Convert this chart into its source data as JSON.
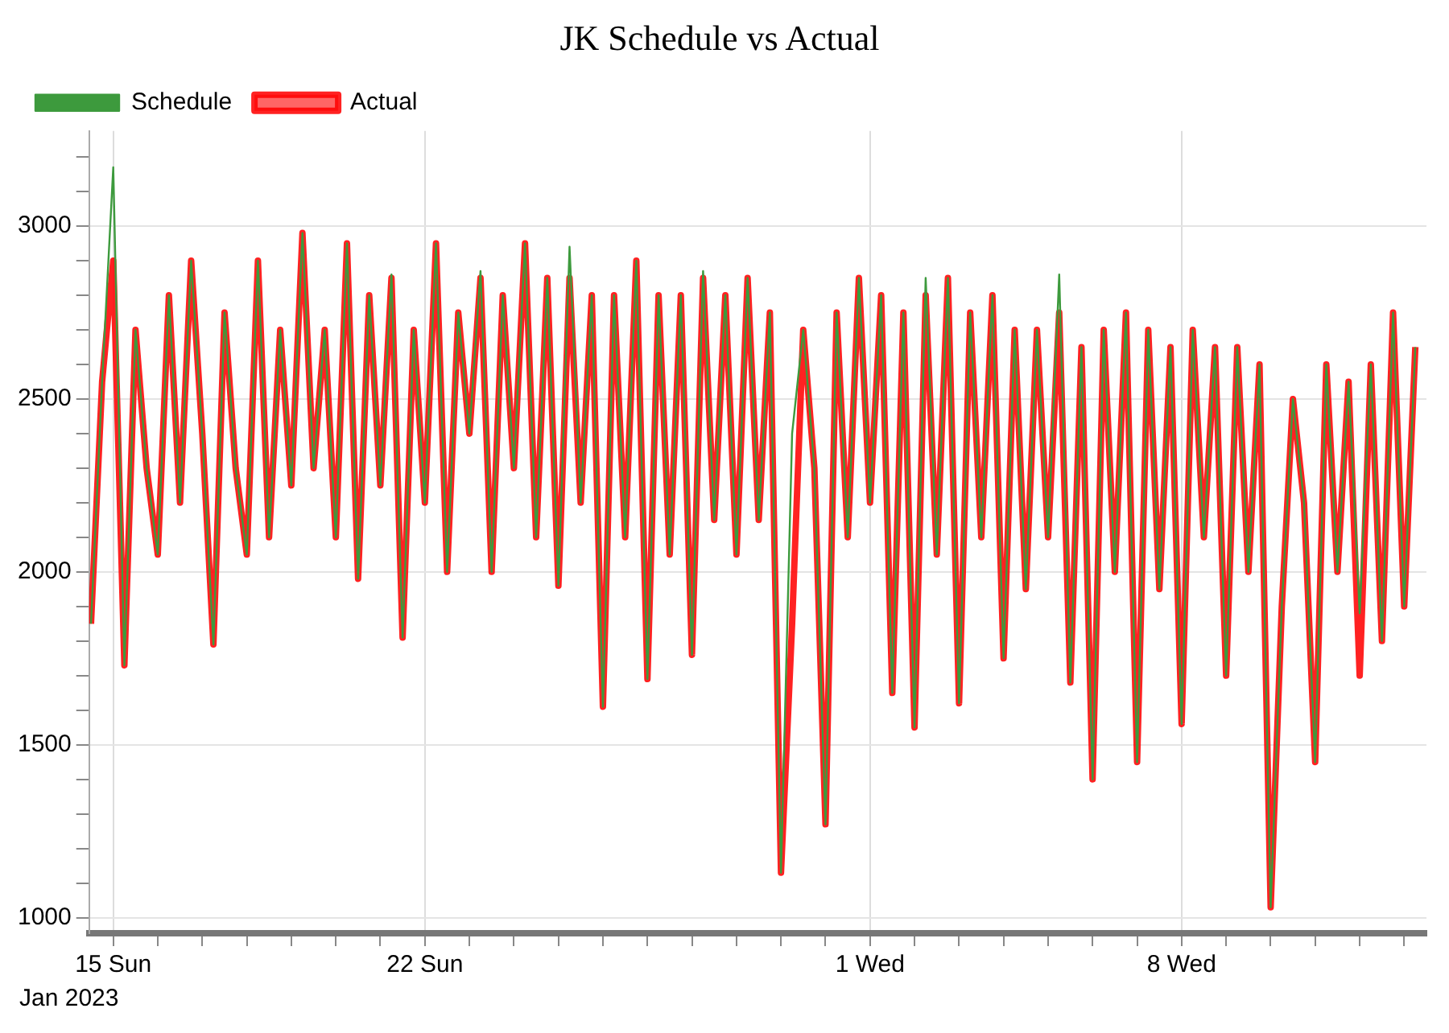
{
  "chart_data": {
    "type": "line",
    "title": "JK Schedule vs Actual",
    "x": [
      "2023-01-14T12:00",
      "2023-01-14T18:00",
      "2023-01-15T00:00",
      "2023-01-15T06:00",
      "2023-01-15T12:00",
      "2023-01-15T18:00",
      "2023-01-16T00:00",
      "2023-01-16T06:00",
      "2023-01-16T12:00",
      "2023-01-16T18:00",
      "2023-01-17T00:00",
      "2023-01-17T06:00",
      "2023-01-17T12:00",
      "2023-01-17T18:00",
      "2023-01-18T00:00",
      "2023-01-18T06:00",
      "2023-01-18T12:00",
      "2023-01-18T18:00",
      "2023-01-19T00:00",
      "2023-01-19T06:00",
      "2023-01-19T12:00",
      "2023-01-19T18:00",
      "2023-01-20T00:00",
      "2023-01-20T06:00",
      "2023-01-20T12:00",
      "2023-01-20T18:00",
      "2023-01-21T00:00",
      "2023-01-21T06:00",
      "2023-01-21T12:00",
      "2023-01-21T18:00",
      "2023-01-22T00:00",
      "2023-01-22T06:00",
      "2023-01-22T12:00",
      "2023-01-22T18:00",
      "2023-01-23T00:00",
      "2023-01-23T06:00",
      "2023-01-23T12:00",
      "2023-01-23T18:00",
      "2023-01-24T00:00",
      "2023-01-24T06:00",
      "2023-01-24T12:00",
      "2023-01-24T18:00",
      "2023-01-25T00:00",
      "2023-01-25T06:00",
      "2023-01-25T12:00",
      "2023-01-25T18:00",
      "2023-01-26T00:00",
      "2023-01-26T06:00",
      "2023-01-26T12:00",
      "2023-01-26T18:00",
      "2023-01-27T00:00",
      "2023-01-27T06:00",
      "2023-01-27T12:00",
      "2023-01-27T18:00",
      "2023-01-28T00:00",
      "2023-01-28T06:00",
      "2023-01-28T12:00",
      "2023-01-28T18:00",
      "2023-01-29T00:00",
      "2023-01-29T06:00",
      "2023-01-29T12:00",
      "2023-01-29T18:00",
      "2023-01-30T00:00",
      "2023-01-30T06:00",
      "2023-01-30T12:00",
      "2023-01-30T18:00",
      "2023-01-31T00:00",
      "2023-01-31T06:00",
      "2023-01-31T12:00",
      "2023-01-31T18:00",
      "2023-02-01T00:00",
      "2023-02-01T06:00",
      "2023-02-01T12:00",
      "2023-02-01T18:00",
      "2023-02-02T00:00",
      "2023-02-02T06:00",
      "2023-02-02T12:00",
      "2023-02-02T18:00",
      "2023-02-03T00:00",
      "2023-02-03T06:00",
      "2023-02-03T12:00",
      "2023-02-03T18:00",
      "2023-02-04T00:00",
      "2023-02-04T06:00",
      "2023-02-04T12:00",
      "2023-02-04T18:00",
      "2023-02-05T00:00",
      "2023-02-05T06:00",
      "2023-02-05T12:00",
      "2023-02-05T18:00",
      "2023-02-06T00:00",
      "2023-02-06T06:00",
      "2023-02-06T12:00",
      "2023-02-06T18:00",
      "2023-02-07T00:00",
      "2023-02-07T06:00",
      "2023-02-07T12:00",
      "2023-02-07T18:00",
      "2023-02-08T00:00",
      "2023-02-08T06:00",
      "2023-02-08T12:00",
      "2023-02-08T18:00",
      "2023-02-09T00:00",
      "2023-02-09T06:00",
      "2023-02-09T12:00",
      "2023-02-09T18:00",
      "2023-02-10T00:00",
      "2023-02-10T06:00",
      "2023-02-10T12:00",
      "2023-02-10T18:00",
      "2023-02-11T00:00",
      "2023-02-11T06:00",
      "2023-02-11T12:00",
      "2023-02-11T18:00",
      "2023-02-12T00:00",
      "2023-02-12T06:00",
      "2023-02-12T12:00",
      "2023-02-12T18:00",
      "2023-02-13T00:00",
      "2023-02-13T06:00"
    ],
    "series": [
      {
        "name": "Schedule",
        "color": "#3d9a3d",
        "values": [
          1850,
          2550,
          3170,
          1730,
          2700,
          2300,
          2050,
          2800,
          2200,
          2900,
          2400,
          1790,
          2750,
          2300,
          2050,
          2900,
          2100,
          2700,
          2250,
          2980,
          2300,
          2700,
          2100,
          2950,
          1980,
          2800,
          2250,
          2860,
          1810,
          2700,
          2200,
          2950,
          2000,
          2750,
          2400,
          2870,
          2000,
          2800,
          2300,
          2950,
          2100,
          2850,
          1960,
          2940,
          2200,
          2800,
          1610,
          2800,
          2100,
          2900,
          1690,
          2800,
          2050,
          2800,
          1760,
          2870,
          2150,
          2800,
          2050,
          2850,
          2150,
          2750,
          1130,
          2400,
          2700,
          2300,
          1270,
          2750,
          2100,
          2850,
          2200,
          2800,
          1650,
          2750,
          1550,
          2850,
          2050,
          2850,
          1620,
          2750,
          2100,
          2800,
          1750,
          2700,
          1950,
          2700,
          2100,
          2860,
          1680,
          2650,
          1400,
          2700,
          2000,
          2750,
          1450,
          2700,
          1950,
          2650,
          1560,
          2700,
          2100,
          2650,
          1700,
          2650,
          2000,
          2600,
          1030,
          1900,
          2500,
          2200,
          1450,
          2600,
          2000,
          2550,
          1880,
          2600,
          1800,
          2750,
          1900,
          2650
        ]
      },
      {
        "name": "Actual",
        "color": "#ff0000",
        "values": [
          1850,
          2550,
          2900,
          1730,
          2700,
          2300,
          2050,
          2800,
          2200,
          2900,
          2400,
          1790,
          2750,
          2300,
          2050,
          2900,
          2100,
          2700,
          2250,
          2980,
          2300,
          2700,
          2100,
          2950,
          1980,
          2800,
          2250,
          2850,
          1810,
          2700,
          2200,
          2950,
          2000,
          2750,
          2400,
          2850,
          2000,
          2800,
          2300,
          2950,
          2100,
          2850,
          1960,
          2850,
          2200,
          2800,
          1610,
          2800,
          2100,
          2900,
          1690,
          2800,
          2050,
          2800,
          1760,
          2850,
          2150,
          2800,
          2050,
          2850,
          2150,
          2750,
          1130,
          1850,
          2700,
          2300,
          1270,
          2750,
          2100,
          2850,
          2200,
          2800,
          1650,
          2750,
          1550,
          2800,
          2050,
          2850,
          1620,
          2750,
          2100,
          2800,
          1750,
          2700,
          1950,
          2700,
          2100,
          2750,
          1680,
          2650,
          1400,
          2700,
          2000,
          2750,
          1450,
          2700,
          1950,
          2650,
          1560,
          2700,
          2100,
          2650,
          1700,
          2650,
          2000,
          2600,
          1030,
          1900,
          2500,
          2200,
          1450,
          2600,
          2000,
          2550,
          1700,
          2600,
          1800,
          2750,
          1900,
          2650
        ]
      }
    ],
    "xlim": [
      "2023-01-14T11:00",
      "2023-02-13T12:00"
    ],
    "xticks": [
      {
        "value": "2023-01-15",
        "label": "15 Sun"
      },
      {
        "value": "2023-01-16",
        "label": null
      },
      {
        "value": "2023-01-17",
        "label": null
      },
      {
        "value": "2023-01-18",
        "label": null
      },
      {
        "value": "2023-01-19",
        "label": null
      },
      {
        "value": "2023-01-20",
        "label": null
      },
      {
        "value": "2023-01-21",
        "label": null
      },
      {
        "value": "2023-01-22",
        "label": "22 Sun"
      },
      {
        "value": "2023-01-23",
        "label": null
      },
      {
        "value": "2023-01-24",
        "label": null
      },
      {
        "value": "2023-01-25",
        "label": null
      },
      {
        "value": "2023-01-26",
        "label": null
      },
      {
        "value": "2023-01-27",
        "label": null
      },
      {
        "value": "2023-01-28",
        "label": null
      },
      {
        "value": "2023-01-29",
        "label": null
      },
      {
        "value": "2023-01-30",
        "label": null
      },
      {
        "value": "2023-01-31",
        "label": null
      },
      {
        "value": "2023-02-01",
        "label": "1 Wed"
      },
      {
        "value": "2023-02-02",
        "label": null
      },
      {
        "value": "2023-02-03",
        "label": null
      },
      {
        "value": "2023-02-04",
        "label": null
      },
      {
        "value": "2023-02-05",
        "label": null
      },
      {
        "value": "2023-02-06",
        "label": null
      },
      {
        "value": "2023-02-07",
        "label": null
      },
      {
        "value": "2023-02-08",
        "label": "8 Wed"
      },
      {
        "value": "2023-02-09",
        "label": null
      },
      {
        "value": "2023-02-10",
        "label": null
      },
      {
        "value": "2023-02-11",
        "label": null
      },
      {
        "value": "2023-02-12",
        "label": null
      },
      {
        "value": "2023-02-13",
        "label": null
      }
    ],
    "ylim": [
      955,
      3275
    ],
    "yticks": [
      1000,
      {
        "value": 1100,
        "label": null
      },
      {
        "value": 1200,
        "label": null
      },
      {
        "value": 1300,
        "label": null
      },
      {
        "value": 1400,
        "label": null
      },
      1500,
      {
        "value": 1600,
        "label": null
      },
      {
        "value": 1700,
        "label": null
      },
      {
        "value": 1800,
        "label": null
      },
      {
        "value": 1900,
        "label": null
      },
      2000,
      {
        "value": 2100,
        "label": null
      },
      {
        "value": 2200,
        "label": null
      },
      {
        "value": 2300,
        "label": null
      },
      {
        "value": 2400,
        "label": null
      },
      2500,
      {
        "value": 2600,
        "label": null
      },
      {
        "value": 2700,
        "label": null
      },
      {
        "value": 2800,
        "label": null
      },
      {
        "value": 2900,
        "label": null
      },
      3000,
      {
        "value": 3100,
        "label": null
      },
      {
        "value": 3200,
        "label": null
      }
    ],
    "annotations": [
      "Jan 2023"
    ],
    "grid": true,
    "legend": "top left",
    "marker": "none",
    "line_style": "solid"
  }
}
